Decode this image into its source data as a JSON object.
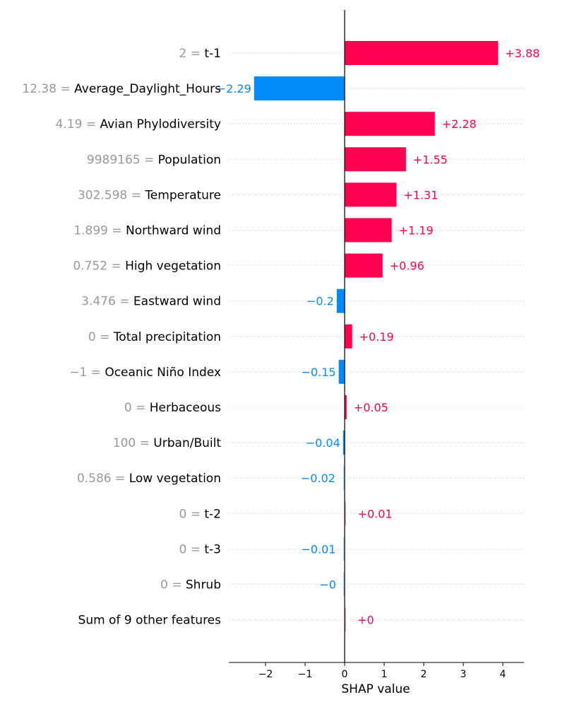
{
  "chart_data": {
    "type": "bar",
    "orientation": "horizontal",
    "xlabel": "SHAP value",
    "xlim": [
      -2.95,
      4.5
    ],
    "xticks": [
      {
        "value": -2,
        "label": "−2"
      },
      {
        "value": -1,
        "label": "−1"
      },
      {
        "value": 0,
        "label": "0"
      },
      {
        "value": 1,
        "label": "1"
      },
      {
        "value": 2,
        "label": "2"
      },
      {
        "value": 3,
        "label": "3"
      },
      {
        "value": 4,
        "label": "4"
      }
    ],
    "grid": "dotted horizontal row guides",
    "colors": {
      "positive": "#ff0051",
      "negative": "#008bfb",
      "feature_value": "#999999"
    },
    "features": [
      {
        "value_text": "2 = ",
        "name": "t-1",
        "shap": 3.88,
        "label": "+3.88"
      },
      {
        "value_text": "12.38 = ",
        "name": "Average_Daylight_Hours",
        "shap": -2.29,
        "label": "−2.29"
      },
      {
        "value_text": "4.19 = ",
        "name": "Avian Phylodiversity",
        "shap": 2.28,
        "label": "+2.28"
      },
      {
        "value_text": "9989165 = ",
        "name": "Population",
        "shap": 1.55,
        "label": "+1.55"
      },
      {
        "value_text": "302.598 = ",
        "name": "Temperature",
        "shap": 1.31,
        "label": "+1.31"
      },
      {
        "value_text": "1.899 = ",
        "name": "Northward wind",
        "shap": 1.19,
        "label": "+1.19"
      },
      {
        "value_text": "0.752 = ",
        "name": "High vegetation",
        "shap": 0.96,
        "label": "+0.96"
      },
      {
        "value_text": "3.476 = ",
        "name": "Eastward wind",
        "shap": -0.2,
        "label": "−0.2"
      },
      {
        "value_text": "0 = ",
        "name": "Total precipitation",
        "shap": 0.19,
        "label": "+0.19"
      },
      {
        "value_text": "−1 = ",
        "name": "Oceanic Niño Index",
        "shap": -0.15,
        "label": "−0.15"
      },
      {
        "value_text": "0 = ",
        "name": "Herbaceous",
        "shap": 0.05,
        "label": "+0.05"
      },
      {
        "value_text": "100 = ",
        "name": "Urban/Built",
        "shap": -0.04,
        "label": "−0.04"
      },
      {
        "value_text": "0.586 = ",
        "name": "Low vegetation",
        "shap": -0.02,
        "label": "−0.02"
      },
      {
        "value_text": "0 = ",
        "name": "t-2",
        "shap": 0.01,
        "label": "+0.01"
      },
      {
        "value_text": "0 = ",
        "name": "t-3",
        "shap": -0.01,
        "label": "−0.01"
      },
      {
        "value_text": "0 = ",
        "name": "Shrub",
        "shap": -0.002,
        "label": "−0"
      },
      {
        "value_text": "",
        "name": "Sum of 9 other features",
        "shap": 0.002,
        "label": "+0"
      }
    ]
  }
}
